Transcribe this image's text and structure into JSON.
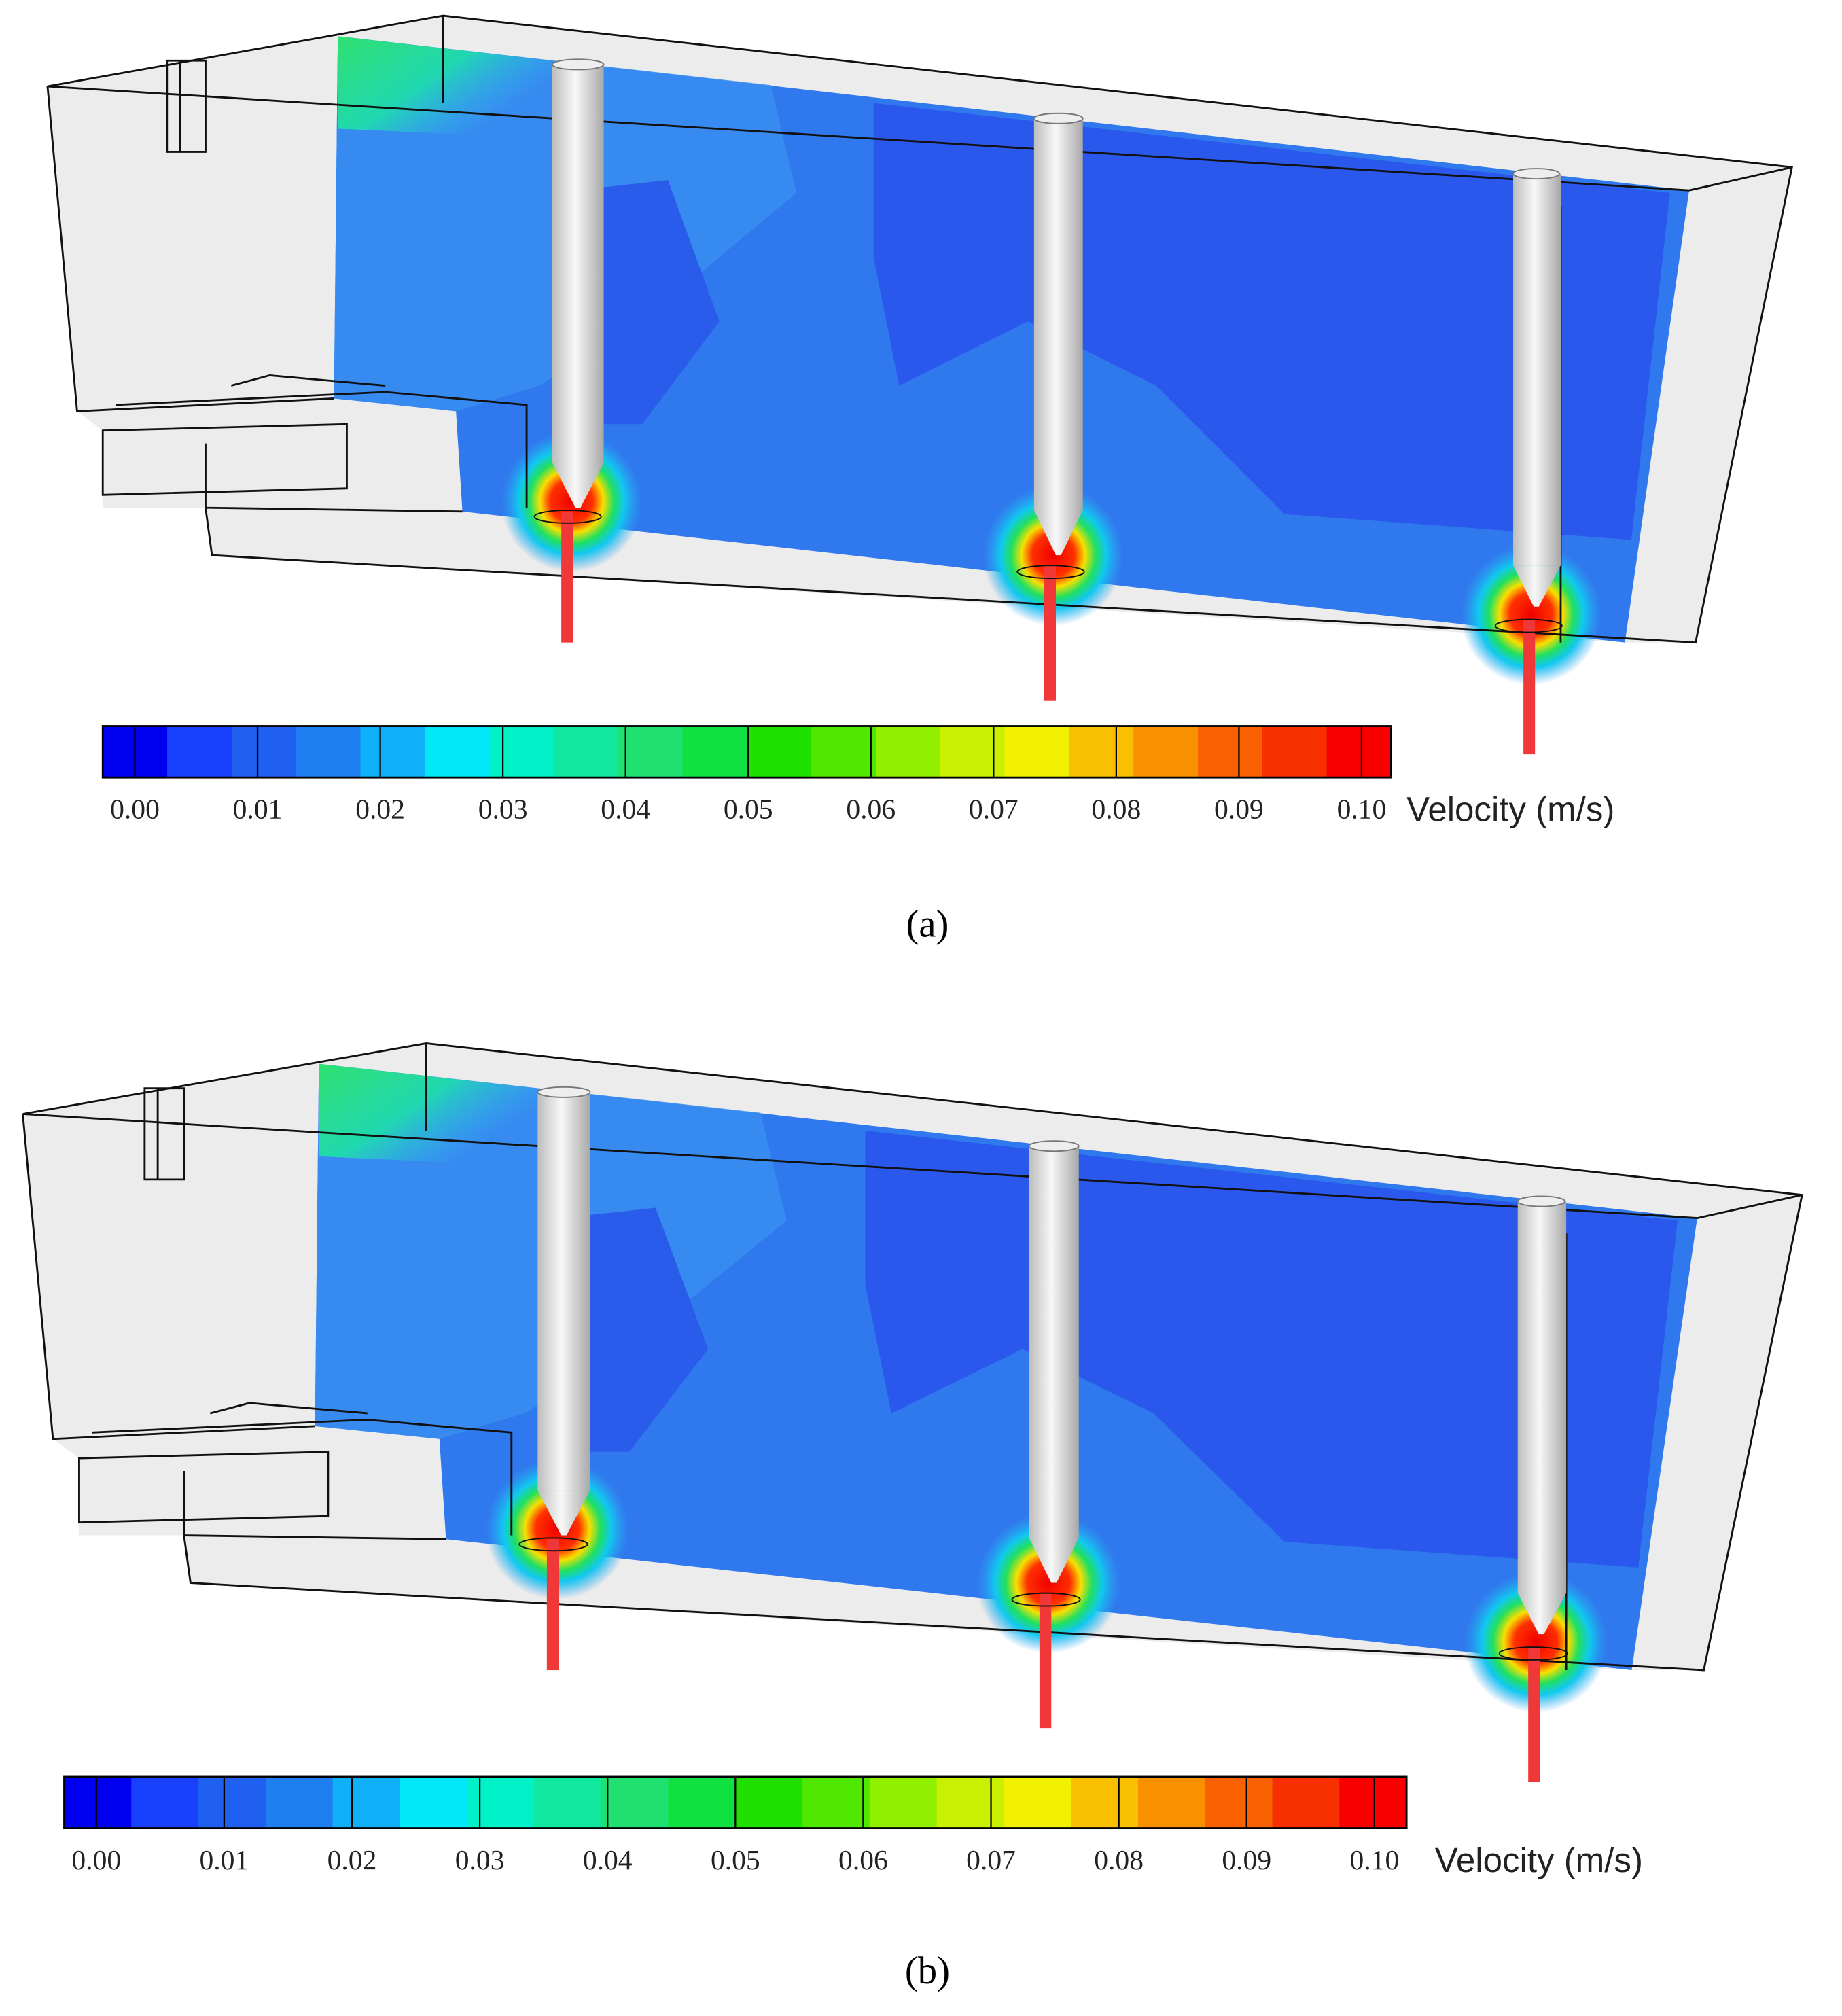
{
  "panels": [
    {
      "caption": "(a)",
      "colorbar": {
        "label": "Velocity (m/s)",
        "lim": [
          0,
          0.1
        ],
        "ticks": [
          {
            "value": 0,
            "label": "0.00"
          },
          {
            "value": 0.01,
            "label": "0.01"
          },
          {
            "value": 0.02,
            "label": "0.02"
          },
          {
            "value": 0.03,
            "label": "0.03"
          },
          {
            "value": 0.04,
            "label": "0.04"
          },
          {
            "value": 0.05,
            "label": "0.05"
          },
          {
            "value": 0.06,
            "label": "0.06"
          },
          {
            "value": 0.07,
            "label": "0.07"
          },
          {
            "value": 0.08,
            "label": "0.08"
          },
          {
            "value": 0.09,
            "label": "0.09"
          },
          {
            "value": 0.1,
            "label": "0.10"
          }
        ],
        "colors": [
          "#0000f0",
          "#1a40ff",
          "#2060f0",
          "#1e80f0",
          "#10b0f8",
          "#00e8f8",
          "#00f0c8",
          "#10e8a0",
          "#20e070",
          "#10e040",
          "#20e000",
          "#50e800",
          "#90f000",
          "#c8f000",
          "#f0f000",
          "#f8c000",
          "#f89000",
          "#f86000",
          "#f83000",
          "#f80000"
        ]
      }
    },
    {
      "caption": "(b)",
      "colorbar": {
        "label": "Velocity (m/s)",
        "lim": [
          0,
          0.1
        ],
        "ticks": [
          {
            "value": 0,
            "label": "0.00"
          },
          {
            "value": 0.01,
            "label": "0.01"
          },
          {
            "value": 0.02,
            "label": "0.02"
          },
          {
            "value": 0.03,
            "label": "0.03"
          },
          {
            "value": 0.04,
            "label": "0.04"
          },
          {
            "value": 0.05,
            "label": "0.05"
          },
          {
            "value": 0.06,
            "label": "0.06"
          },
          {
            "value": 0.07,
            "label": "0.07"
          },
          {
            "value": 0.08,
            "label": "0.08"
          },
          {
            "value": 0.09,
            "label": "0.09"
          },
          {
            "value": 0.1,
            "label": "0.10"
          }
        ],
        "colors": [
          "#0000f0",
          "#1a40ff",
          "#2060f0",
          "#1e80f0",
          "#10b0f8",
          "#00e8f8",
          "#00f0c8",
          "#10e8a0",
          "#20e070",
          "#10e040",
          "#20e000",
          "#50e800",
          "#90f000",
          "#c8f000",
          "#f0f000",
          "#f8c000",
          "#f89000",
          "#f86000",
          "#f83000",
          "#f80000"
        ]
      }
    }
  ]
}
